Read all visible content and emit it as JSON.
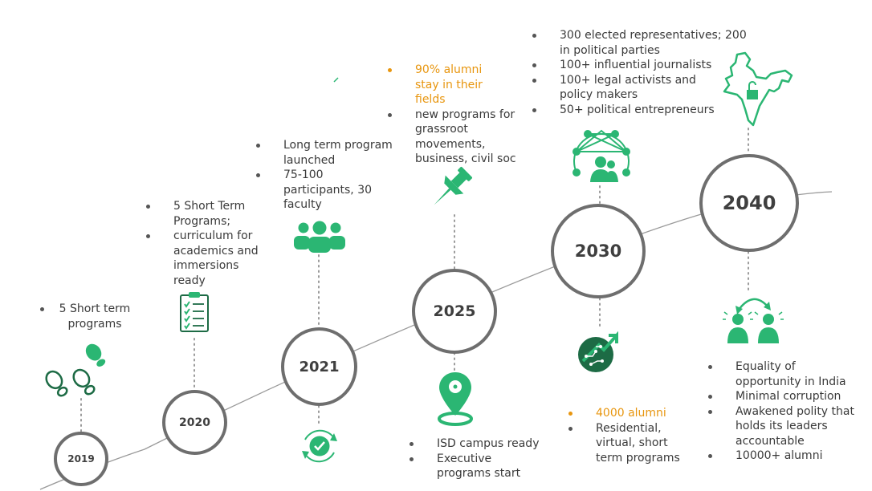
{
  "colors": {
    "accent_green": "#2bb673",
    "dark_green": "#1d6b45",
    "highlight_orange": "#e8960f",
    "circle_stroke": "#6e6e6e",
    "text": "#3a3a3a"
  },
  "milestones": [
    {
      "year": "2019",
      "items": [
        {
          "text": "5 Short term programs"
        }
      ],
      "icon": "footsteps-icon"
    },
    {
      "year": "2020",
      "items": [
        {
          "text": "5 Short Term Programs;"
        },
        {
          "text": "curriculum for academics and immersions ready"
        }
      ],
      "icon": "checklist-icon"
    },
    {
      "year": "2021",
      "items": [
        {
          "text": "Long term program launched"
        },
        {
          "text": "75-100 participants, 30 faculty"
        }
      ],
      "icons": [
        "group-icon",
        "refresh-check-icon"
      ]
    },
    {
      "year": "2025",
      "items_above": [
        {
          "text": "90% alumni stay in their fields",
          "highlight": true
        },
        {
          "text": "new programs for grassroot movements, business, civil soc"
        }
      ],
      "items_below": [
        {
          "text": "ISD campus ready"
        },
        {
          "text": "Executive programs start"
        }
      ],
      "icons": [
        "pushpin-icon",
        "map-pin-icon"
      ]
    },
    {
      "year": "2030",
      "items_above": [
        {
          "text": "300 elected representatives; 200 in political parties"
        },
        {
          "text": "100+ influential journalists"
        },
        {
          "text": "100+ legal activists and policy makers"
        },
        {
          "text": "50+ political entrepreneurs"
        }
      ],
      "items_below": [
        {
          "text": "4000 alumni",
          "highlight": true
        },
        {
          "text": "Residential, virtual, short term programs"
        }
      ],
      "icons": [
        "network-people-icon",
        "growth-chip-icon"
      ]
    },
    {
      "year": "2040",
      "items": [
        {
          "text": "Equality of opportunity in India"
        },
        {
          "text": "Minimal corruption"
        },
        {
          "text": "Awakened polity that holds its leaders accountable"
        },
        {
          "text": "10000+ alumni"
        }
      ],
      "icons": [
        "india-map-lock-icon",
        "exchange-people-icon"
      ]
    }
  ]
}
